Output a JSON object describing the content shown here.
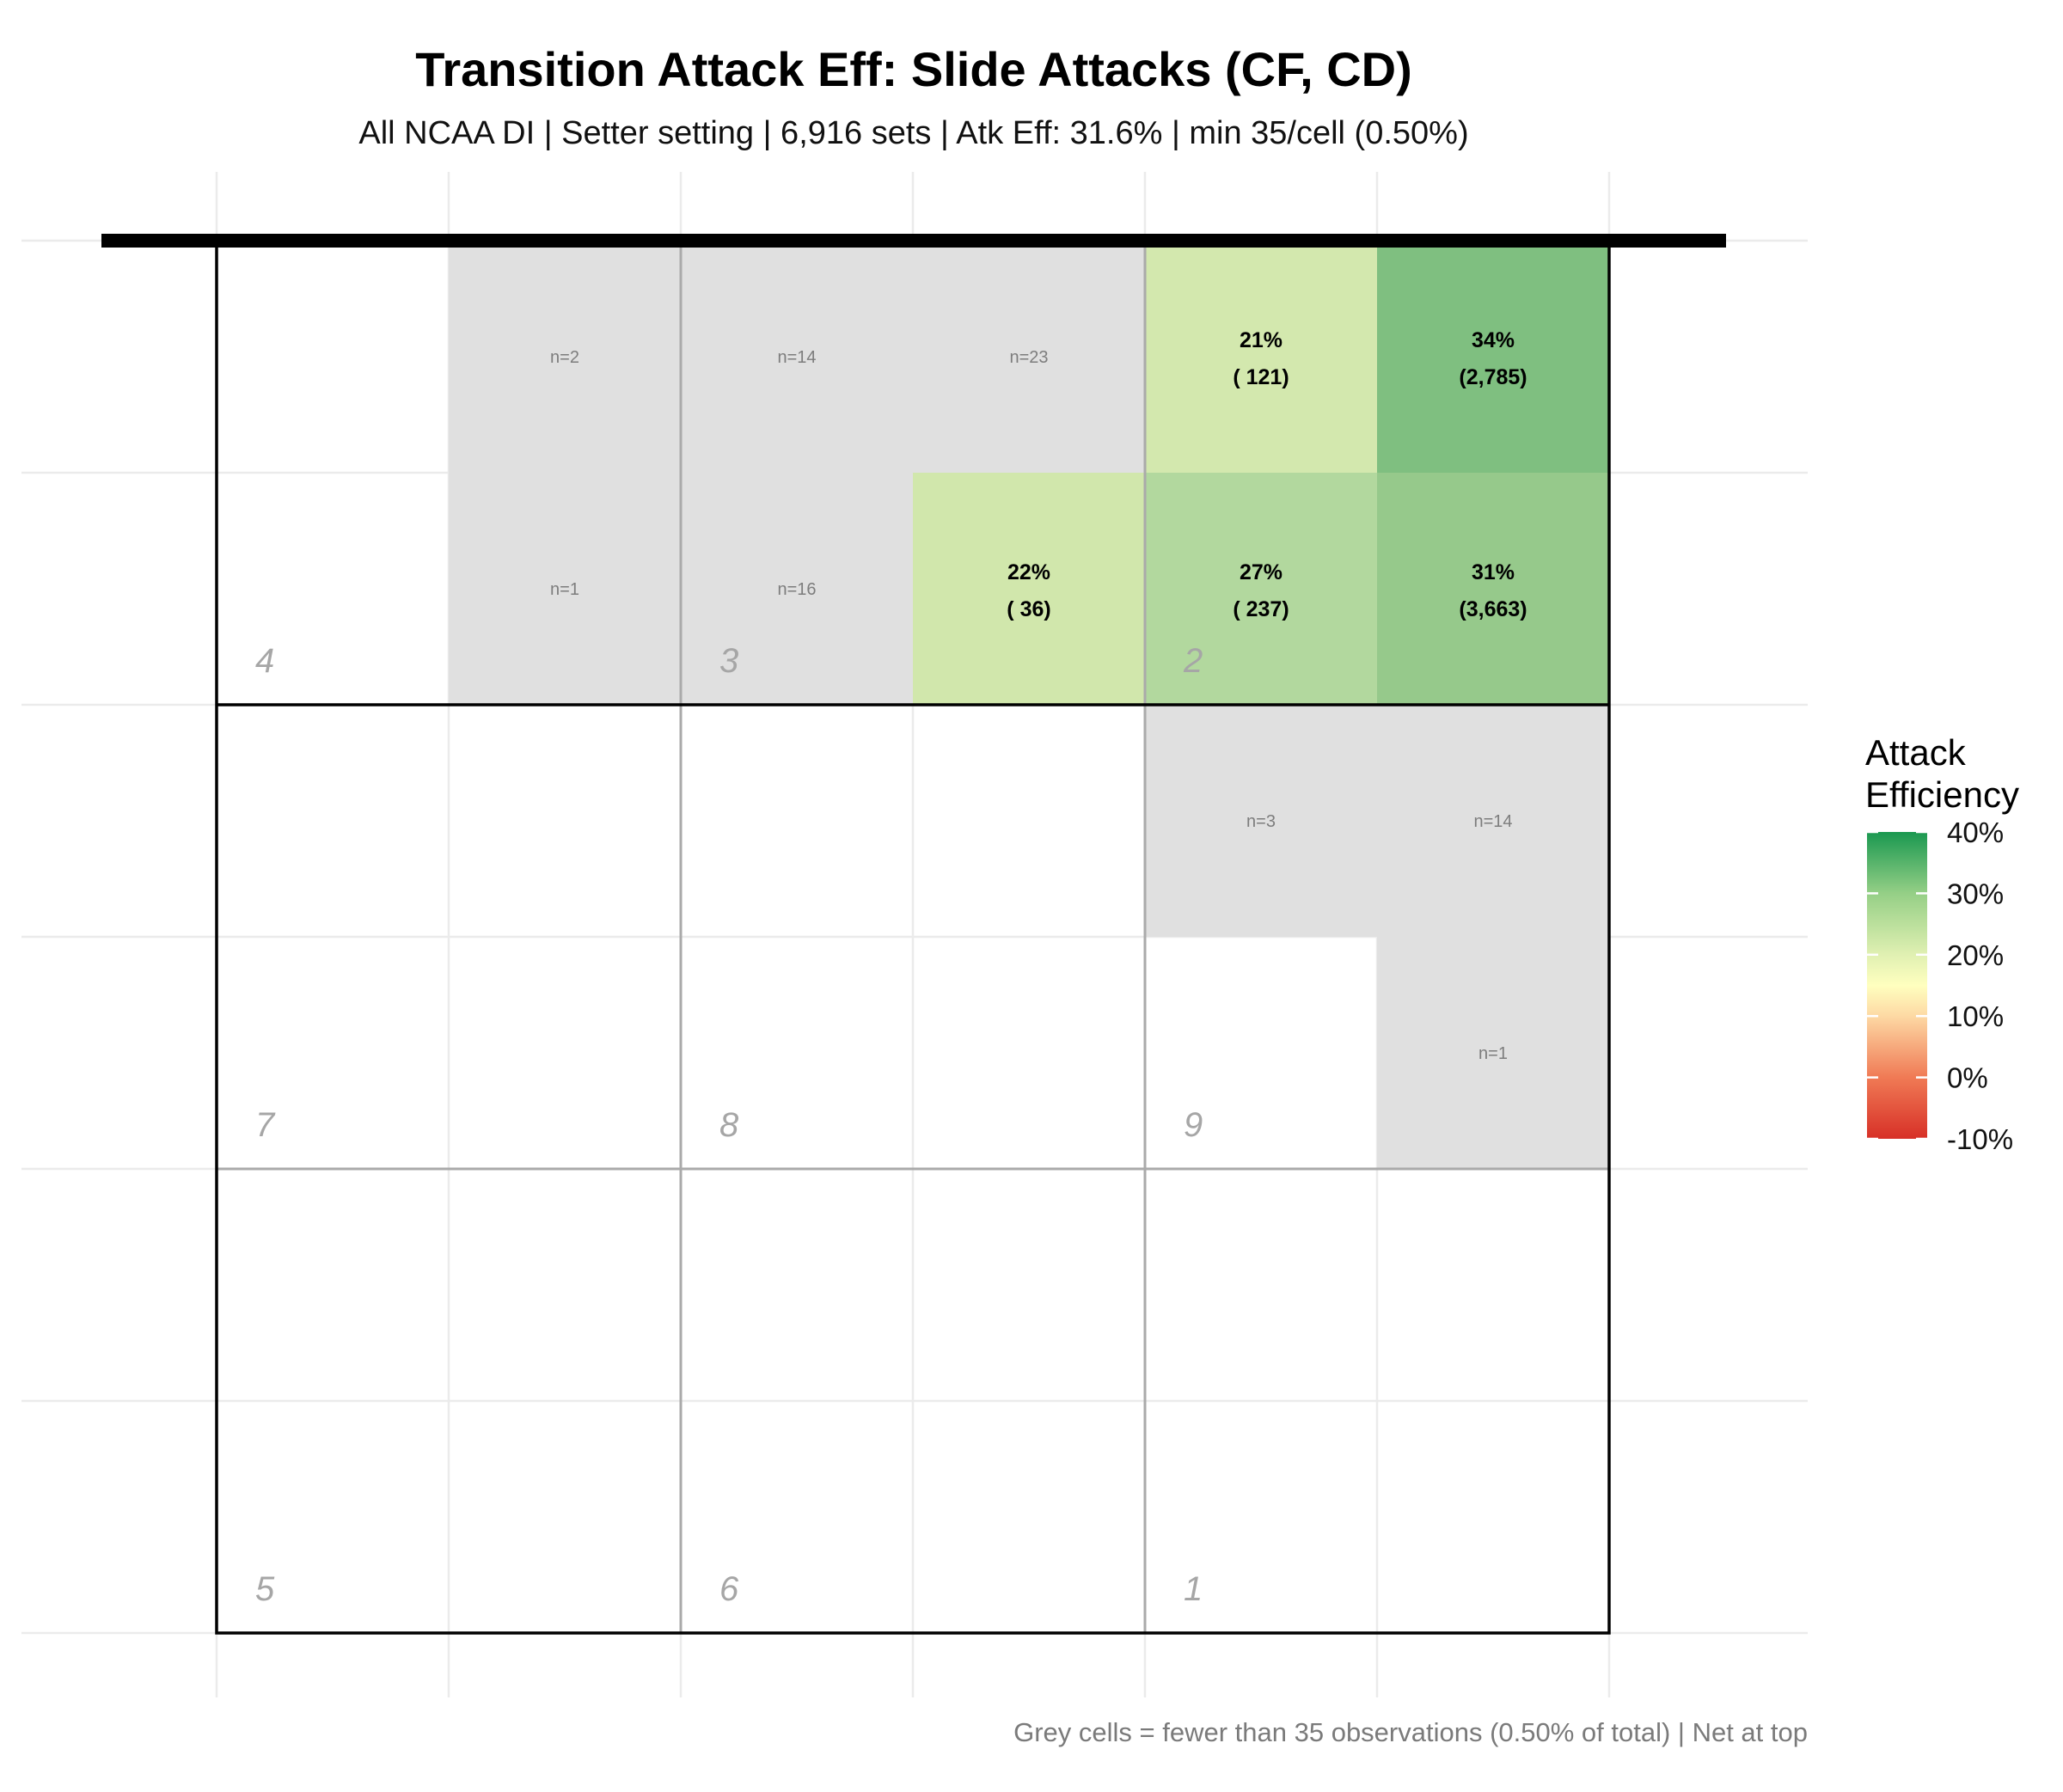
{
  "chart_data": {
    "type": "heatmap",
    "title": "Transition Attack Eff: Slide Attacks (CF, CD)",
    "subtitle": "All NCAA DI | Setter setting | 6,916 sets | Atk Eff: 31.6% | min 35/cell (0.50%)",
    "caption": "Grey cells = fewer than 35 observations (0.50% of total) | Net at top",
    "grid": {
      "cols": 6,
      "rows": 6
    },
    "colorscale": {
      "title_lines": [
        "Attack",
        "Efficiency"
      ],
      "min": -0.1,
      "max": 0.4,
      "ticks": [
        {
          "value": 0.4,
          "label": "40%"
        },
        {
          "value": 0.3,
          "label": "30%"
        },
        {
          "value": 0.2,
          "label": "20%"
        },
        {
          "value": 0.1,
          "label": "10%"
        },
        {
          "value": 0.0,
          "label": "0%"
        },
        {
          "value": -0.1,
          "label": "-10%"
        }
      ],
      "stops": [
        {
          "value": -0.1,
          "color": "#d73027"
        },
        {
          "value": 0.0,
          "color": "#f07a55"
        },
        {
          "value": 0.1,
          "color": "#fdd9a4"
        },
        {
          "value": 0.15,
          "color": "#ffffbf"
        },
        {
          "value": 0.2,
          "color": "#e0f0b2"
        },
        {
          "value": 0.3,
          "color": "#95cf86"
        },
        {
          "value": 0.4,
          "color": "#1a9850"
        }
      ]
    },
    "grey_color": "#e0e0e0",
    "cells": [
      {
        "row": 0,
        "col": 1,
        "n_label": "n=2"
      },
      {
        "row": 0,
        "col": 2,
        "n_label": "n=14"
      },
      {
        "row": 0,
        "col": 3,
        "n_label": "n=23"
      },
      {
        "row": 0,
        "col": 4,
        "eff": 0.21,
        "eff_label": "21%",
        "count_label": "(  121)",
        "color": "#d3e8ae"
      },
      {
        "row": 0,
        "col": 5,
        "eff": 0.34,
        "eff_label": "34%",
        "count_label": "(2,785)",
        "color": "#7fbf80"
      },
      {
        "row": 1,
        "col": 1,
        "n_label": "n=1"
      },
      {
        "row": 1,
        "col": 2,
        "n_label": "n=16"
      },
      {
        "row": 1,
        "col": 3,
        "eff": 0.22,
        "eff_label": "22%",
        "count_label": "(   36)",
        "color": "#d1e7ac"
      },
      {
        "row": 1,
        "col": 4,
        "eff": 0.27,
        "eff_label": "27%",
        "count_label": "(  237)",
        "color": "#b2d89e"
      },
      {
        "row": 1,
        "col": 5,
        "eff": 0.31,
        "eff_label": "31%",
        "count_label": "(3,663)",
        "color": "#96c98b"
      },
      {
        "row": 2,
        "col": 4,
        "n_label": "n=3"
      },
      {
        "row": 2,
        "col": 5,
        "n_label": "n=14"
      },
      {
        "row": 3,
        "col": 5,
        "n_label": "n=1"
      }
    ],
    "zones": [
      {
        "label": "4",
        "block_row": 0,
        "block_col": 0
      },
      {
        "label": "3",
        "block_row": 0,
        "block_col": 1
      },
      {
        "label": "2",
        "block_row": 0,
        "block_col": 2
      },
      {
        "label": "7",
        "block_row": 1,
        "block_col": 0
      },
      {
        "label": "8",
        "block_row": 1,
        "block_col": 1
      },
      {
        "label": "9",
        "block_row": 1,
        "block_col": 2
      },
      {
        "label": "5",
        "block_row": 2,
        "block_col": 0
      },
      {
        "label": "6",
        "block_row": 2,
        "block_col": 1
      },
      {
        "label": "1",
        "block_row": 2,
        "block_col": 2
      }
    ]
  }
}
